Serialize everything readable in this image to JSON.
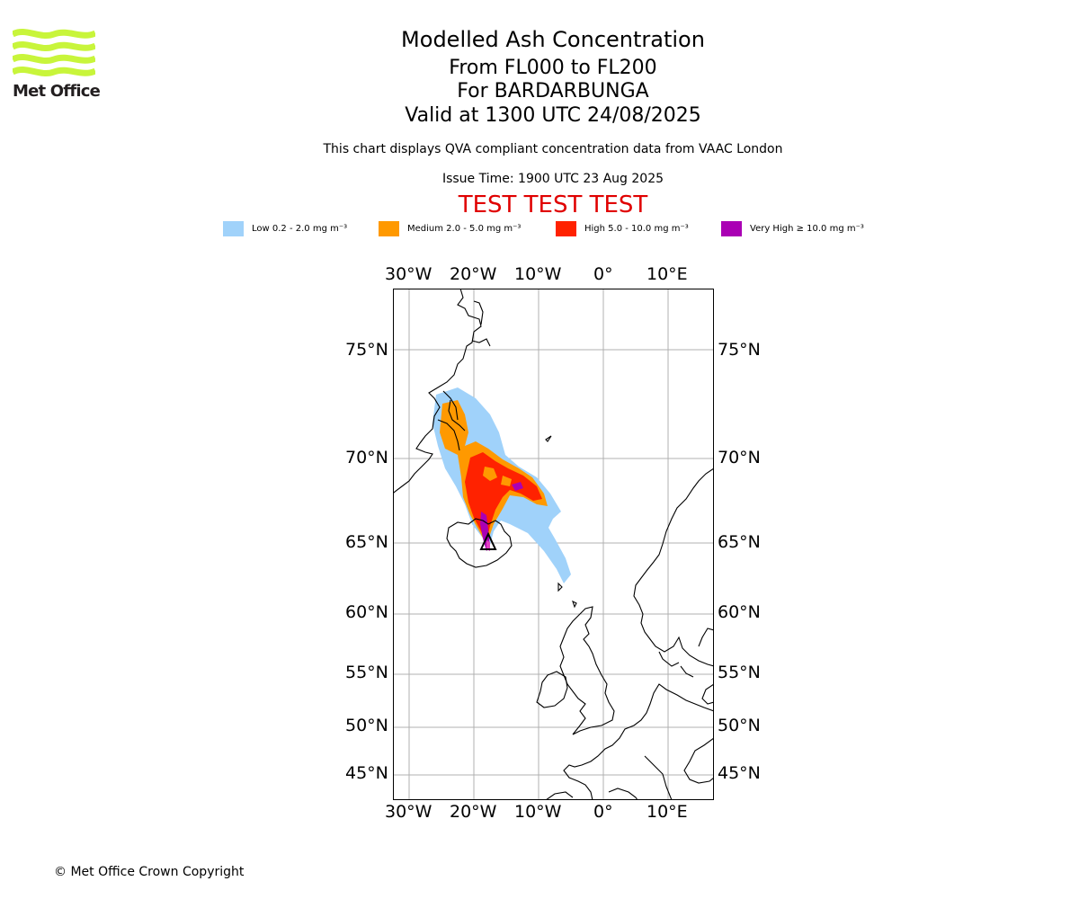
{
  "branding": {
    "logo_text": "Met Office",
    "logo_color": "#c8f53b",
    "copyright": "© Met Office Crown Copyright"
  },
  "header": {
    "title": "Modelled Ash Concentration",
    "levels": "From FL000 to FL200",
    "volcano": "For BARDARBUNGA",
    "valid": "Valid at 1300 UTC 24/08/2025",
    "description": "This chart displays QVA compliant concentration data from VAAC London",
    "issue_time": "Issue Time: 1900 UTC 23 Aug 2025",
    "test_banner": "TEST TEST TEST",
    "test_color": "#e00000"
  },
  "legend": [
    {
      "label": "Low 0.2 - 2.0 mg m⁻³",
      "color": "#a0d2fa"
    },
    {
      "label": "Medium 2.0 - 5.0 mg m⁻³",
      "color": "#ff9900"
    },
    {
      "label": "High 5.0 - 10.0 mg m⁻³",
      "color": "#ff2200"
    },
    {
      "label": "Very High  ≥  10.0 mg m⁻³",
      "color": "#aa00b4"
    }
  ],
  "map": {
    "lon_labels": [
      "30°W",
      "20°W",
      "10°W",
      "0°",
      "10°E"
    ],
    "lat_labels": [
      "75°N",
      "70°N",
      "65°N",
      "60°N",
      "55°N",
      "50°N",
      "45°N"
    ],
    "source_marker": "volcano-triangle-icon"
  }
}
